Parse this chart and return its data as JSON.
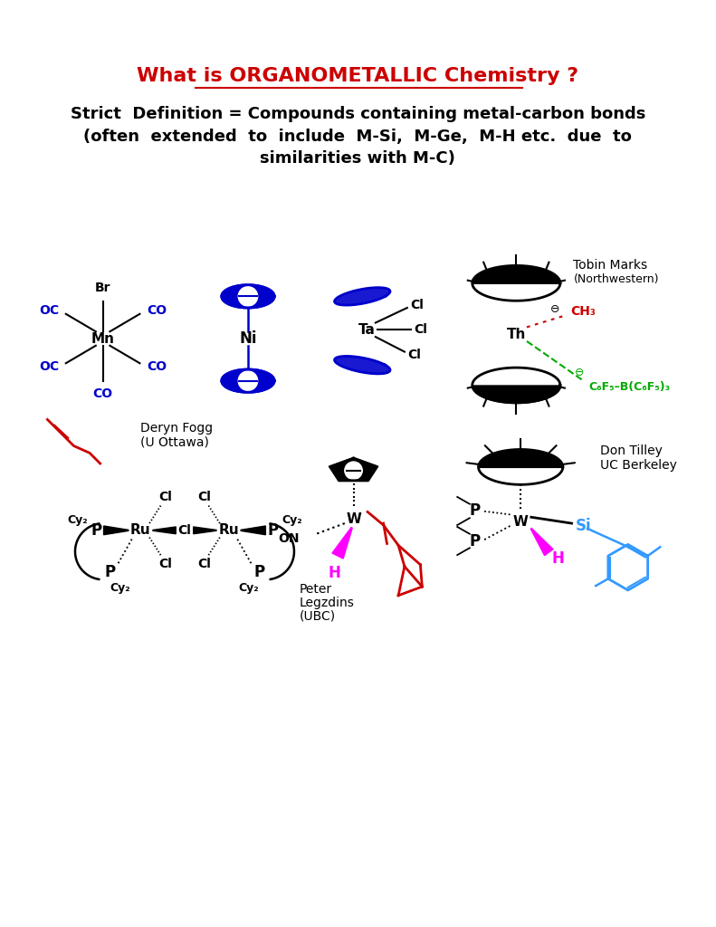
{
  "title": "What is ORGANOMETALLIC Chemistry ?",
  "title_color": "#cc0000",
  "title_fontsize": 16,
  "definition_line1": "Strict  Definition = Compounds containing metal-carbon bonds",
  "definition_line2": "(often  extended  to  include  M-Si,  M-Ge,  M-H etc.  due  to",
  "definition_line3": "similarities with M-C)",
  "bg_color": "#ffffff",
  "text_color": "#000000",
  "blue_color": "#0000cc",
  "red_color": "#cc0000",
  "green_color": "#00aa00",
  "magenta_color": "#ff00ff",
  "cyan_color": "#3399ff"
}
